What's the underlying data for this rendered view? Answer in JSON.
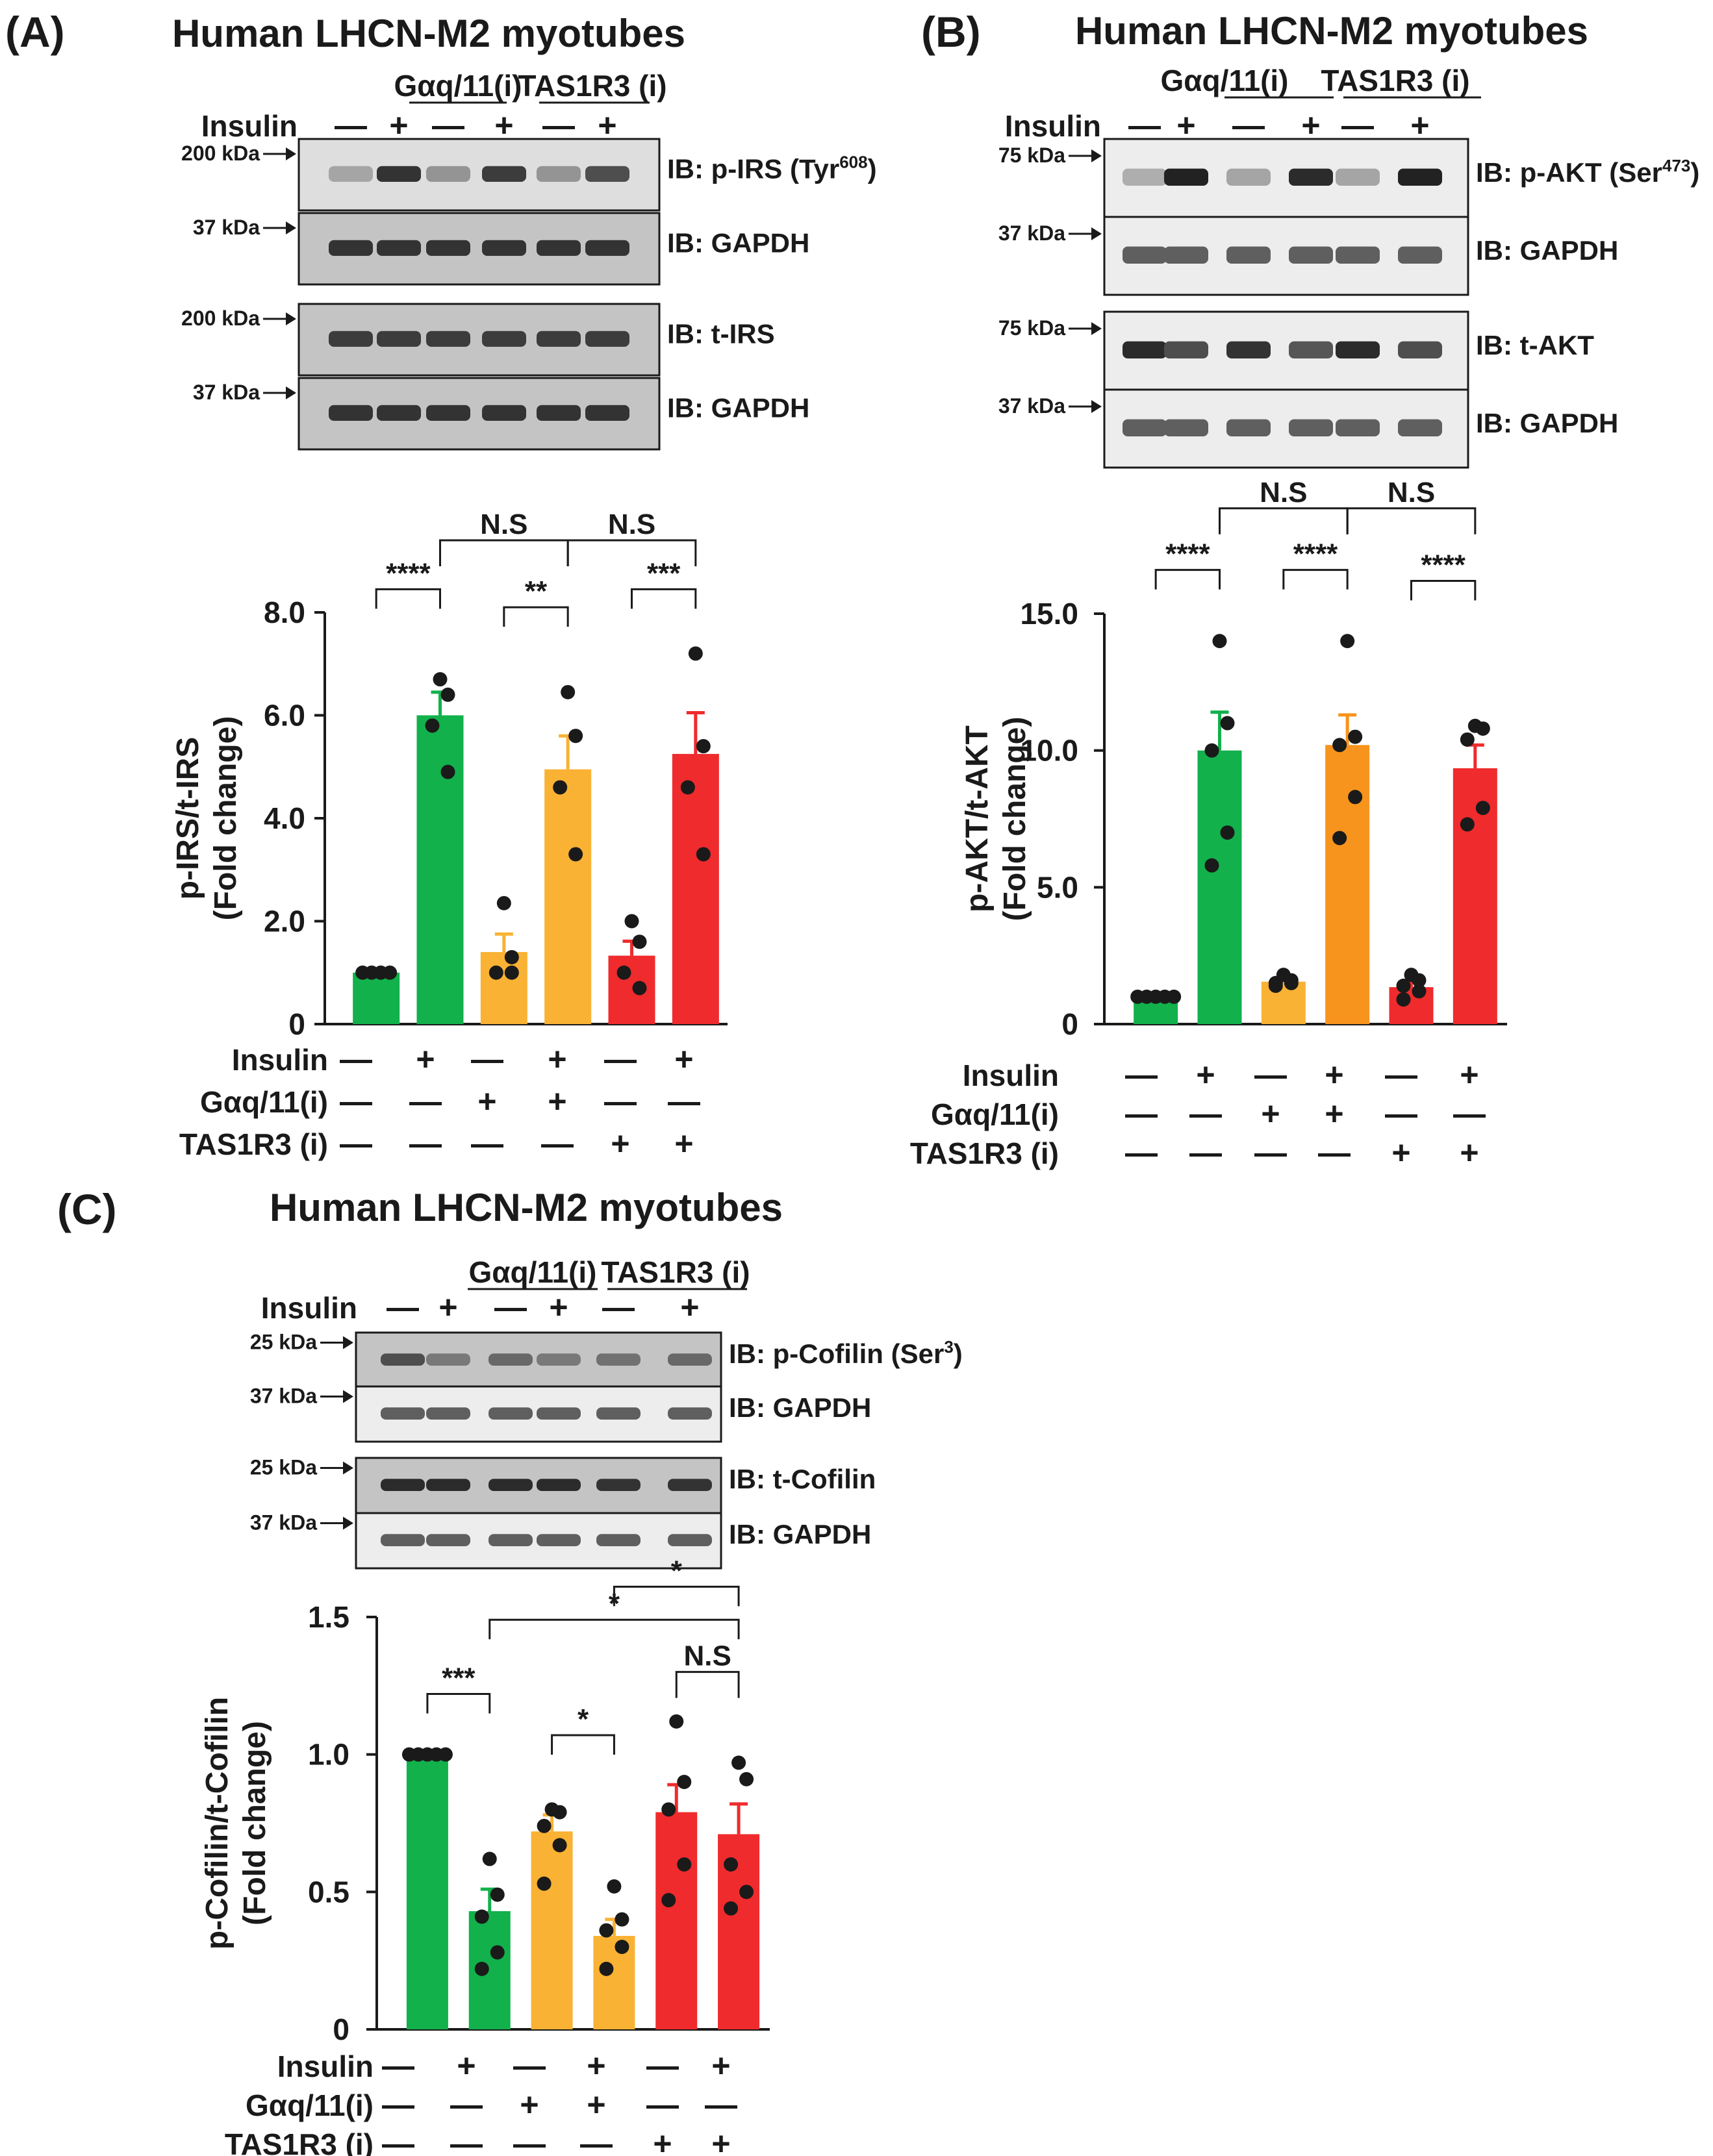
{
  "figure": {
    "panels": [
      {
        "id": "A",
        "label": "(A)",
        "title": "Human LHCN-M2 myotubes",
        "group_headers": [
          "Gαq/11(i)",
          "TAS1R3 (i)"
        ],
        "treatment_row_label": "Insulin",
        "lane_signs": [
          "—",
          "+",
          "—",
          "+",
          "—",
          "+"
        ],
        "blots": [
          {
            "marker": "200 kDa",
            "ib": "IB: p-IRS (Tyr",
            "ib_sup": "608",
            "ib_end": ")",
            "style": "light",
            "intensity": [
              0.2,
              0.85,
              0.3,
              0.8,
              0.3,
              0.7
            ]
          },
          {
            "marker": "37 kDa",
            "ib": "IB: GAPDH",
            "ib_sup": "",
            "ib_end": "",
            "style": "dark",
            "intensity": [
              0.85,
              0.85,
              0.85,
              0.85,
              0.85,
              0.85
            ]
          },
          {
            "marker": "200 kDa",
            "ib": "IB: t-IRS",
            "ib_sup": "",
            "ib_end": "",
            "style": "dark",
            "intensity": [
              0.8,
              0.8,
              0.8,
              0.8,
              0.8,
              0.8
            ]
          },
          {
            "marker": "37 kDa",
            "ib": "IB: GAPDH",
            "ib_sup": "",
            "ib_end": "",
            "style": "dark",
            "intensity": [
              0.85,
              0.85,
              0.85,
              0.85,
              0.85,
              0.85
            ]
          }
        ]
      },
      {
        "id": "B",
        "label": "(B)",
        "title": "Human LHCN-M2 myotubes",
        "group_headers": [
          "Gαq/11(i)",
          "TAS1R3 (i)"
        ],
        "treatment_row_label": "Insulin",
        "lane_signs": [
          "—",
          "+",
          "—",
          "+",
          "—",
          "+"
        ],
        "blots": [
          {
            "marker": "75 kDa",
            "ib": "IB: p-AKT (Ser",
            "ib_sup": "473",
            "ib_end": ")",
            "style": "lite",
            "intensity": [
              0.15,
              0.95,
              0.2,
              0.9,
              0.2,
              0.95
            ]
          },
          {
            "marker": "37 kDa",
            "ib": "IB: GAPDH",
            "ib_sup": "",
            "ib_end": "",
            "style": "lite",
            "intensity": [
              0.6,
              0.6,
              0.6,
              0.6,
              0.6,
              0.6
            ]
          },
          {
            "marker": "75 kDa",
            "ib": "IB: t-AKT",
            "ib_sup": "",
            "ib_end": "",
            "style": "lite",
            "intensity": [
              0.9,
              0.7,
              0.85,
              0.65,
              0.9,
              0.7
            ]
          },
          {
            "marker": "37 kDa",
            "ib": "IB: GAPDH",
            "ib_sup": "",
            "ib_end": "",
            "style": "lite",
            "intensity": [
              0.6,
              0.6,
              0.6,
              0.6,
              0.6,
              0.6
            ]
          }
        ]
      },
      {
        "id": "C",
        "label": "(C)",
        "title": "Human LHCN-M2 myotubes",
        "group_headers": [
          "Gαq/11(i)",
          "TAS1R3 (i)"
        ],
        "treatment_row_label": "Insulin",
        "lane_signs": [
          "—",
          "+",
          "—",
          "+",
          "—",
          "+"
        ],
        "blots": [
          {
            "marker": "25 kDa",
            "ib": "IB: p-Cofilin (Ser",
            "ib_sup": "3",
            "ib_end": ")",
            "style": "dark",
            "intensity": [
              0.7,
              0.45,
              0.55,
              0.45,
              0.5,
              0.55
            ]
          },
          {
            "marker": "37 kDa",
            "ib": "IB: GAPDH",
            "ib_sup": "",
            "ib_end": "",
            "style": "lite",
            "intensity": [
              0.6,
              0.6,
              0.6,
              0.6,
              0.6,
              0.6
            ]
          },
          {
            "marker": "25 kDa",
            "ib": "IB: t-Cofilin",
            "ib_sup": "",
            "ib_end": "",
            "style": "dark",
            "intensity": [
              0.9,
              0.9,
              0.9,
              0.9,
              0.85,
              0.85
            ]
          },
          {
            "marker": "37 kDa",
            "ib": "IB: GAPDH",
            "ib_sup": "",
            "ib_end": "",
            "style": "lite",
            "intensity": [
              0.6,
              0.6,
              0.6,
              0.6,
              0.6,
              0.6
            ]
          }
        ]
      }
    ],
    "treatment_table": {
      "rows": [
        {
          "label": "Insulin",
          "signs": [
            "—",
            "+",
            "—",
            "+",
            "—",
            "+"
          ]
        },
        {
          "label": "Gαq/11(i)",
          "signs": [
            "—",
            "—",
            "+",
            "+",
            "—",
            "—"
          ]
        },
        {
          "label": "TAS1R3 (i)",
          "signs": [
            "—",
            "—",
            "—",
            "—",
            "+",
            "+"
          ]
        }
      ]
    },
    "colors": {
      "green": "#12b14b",
      "orange": "#f9b233",
      "orange_b": "#f7941d",
      "red": "#ef2b2d",
      "black": "#1a1a1a"
    }
  },
  "chart_data": [
    {
      "panel": "A",
      "type": "bar",
      "ylabel": "p-IRS/t-IRS",
      "ylabel2": "(Fold change)",
      "ylim": [
        0,
        8
      ],
      "yticks": [
        0,
        2,
        4,
        6,
        8
      ],
      "ytick_labels": [
        "0",
        "2.0",
        "4.0",
        "6.0",
        "8.0"
      ],
      "categories": [
        "1",
        "2",
        "3",
        "4",
        "5",
        "6"
      ],
      "values": [
        1.0,
        6.0,
        1.4,
        4.95,
        1.33,
        5.25
      ],
      "errors": [
        0.0,
        0.45,
        0.35,
        0.65,
        0.28,
        0.8
      ],
      "bar_colors": [
        "#12b14b",
        "#12b14b",
        "#f9b233",
        "#f9b233",
        "#ef2b2d",
        "#ef2b2d"
      ],
      "points": [
        [
          1.0,
          1.0,
          1.0,
          1.0
        ],
        [
          6.7,
          6.4,
          5.8,
          4.9
        ],
        [
          2.35,
          1.3,
          1.0,
          1.0
        ],
        [
          6.45,
          5.6,
          4.6,
          3.3
        ],
        [
          2.0,
          1.6,
          1.0,
          0.7
        ],
        [
          7.2,
          5.4,
          4.6,
          3.3
        ]
      ],
      "annotations": [
        {
          "text": "****",
          "from": 0,
          "to": 1,
          "level": 8.45
        },
        {
          "text": "**",
          "from": 2,
          "to": 3,
          "level": 8.1
        },
        {
          "text": "***",
          "from": 4,
          "to": 5,
          "level": 8.45
        },
        {
          "text": "N.S",
          "from": 1,
          "to": 3,
          "level": 9.4
        },
        {
          "text": "N.S",
          "from": 3,
          "to": 5,
          "level": 9.4
        }
      ]
    },
    {
      "panel": "B",
      "type": "bar",
      "ylabel": "p-AKT/t-AKT",
      "ylabel2": "(Fold change)",
      "ylim": [
        0,
        15
      ],
      "yticks": [
        0,
        5,
        10,
        15
      ],
      "ytick_labels": [
        "0",
        "5.0",
        "10.0",
        "15.0"
      ],
      "categories": [
        "1",
        "2",
        "3",
        "4",
        "5",
        "6"
      ],
      "values": [
        1.0,
        10.0,
        1.55,
        10.2,
        1.35,
        9.35
      ],
      "errors": [
        0.0,
        1.4,
        0.15,
        1.1,
        0.25,
        0.85
      ],
      "bar_colors": [
        "#12b14b",
        "#12b14b",
        "#f9b233",
        "#f7941d",
        "#ef2b2d",
        "#ef2b2d"
      ],
      "points": [
        [
          1.0,
          1.0,
          1.0,
          1.0,
          1.0
        ],
        [
          14.0,
          11.0,
          10.0,
          7.0,
          5.8
        ],
        [
          1.8,
          1.6,
          1.5,
          1.5,
          1.4
        ],
        [
          14.0,
          10.5,
          10.2,
          8.3,
          6.8
        ],
        [
          1.8,
          1.6,
          1.4,
          1.2,
          0.9
        ],
        [
          10.9,
          10.8,
          10.4,
          7.9,
          7.3
        ]
      ],
      "annotations": [
        {
          "text": "****",
          "from": 0,
          "to": 1,
          "level": 16.6
        },
        {
          "text": "****",
          "from": 2,
          "to": 3,
          "level": 16.6
        },
        {
          "text": "****",
          "from": 4,
          "to": 5,
          "level": 16.2
        },
        {
          "text": "N.S",
          "from": 1,
          "to": 3,
          "level": 18.85
        },
        {
          "text": "N.S",
          "from": 3,
          "to": 5,
          "level": 18.85
        }
      ]
    },
    {
      "panel": "C",
      "type": "bar",
      "ylabel": "p-Cofilin/t-Cofilin",
      "ylabel2": "(Fold change)",
      "ylim": [
        0,
        1.5
      ],
      "yticks": [
        0,
        0.5,
        1.0,
        1.5
      ],
      "ytick_labels": [
        "0",
        "0.5",
        "1.0",
        "1.5"
      ],
      "categories": [
        "1",
        "2",
        "3",
        "4",
        "5",
        "6"
      ],
      "values": [
        1.0,
        0.43,
        0.72,
        0.34,
        0.79,
        0.71
      ],
      "errors": [
        0.0,
        0.08,
        0.06,
        0.06,
        0.1,
        0.11
      ],
      "bar_colors": [
        "#12b14b",
        "#12b14b",
        "#f9b233",
        "#f9b233",
        "#ef2b2d",
        "#ef2b2d"
      ],
      "points": [
        [
          1.0,
          1.0,
          1.0,
          1.0,
          1.0
        ],
        [
          0.62,
          0.49,
          0.41,
          0.28,
          0.22
        ],
        [
          0.8,
          0.79,
          0.74,
          0.67,
          0.53
        ],
        [
          0.52,
          0.4,
          0.36,
          0.3,
          0.22
        ],
        [
          1.12,
          0.9,
          0.8,
          0.6,
          0.47
        ],
        [
          0.97,
          0.91,
          0.6,
          0.5,
          0.44
        ]
      ],
      "annotations": [
        {
          "text": "***",
          "from": 0,
          "to": 1,
          "level": 1.22
        },
        {
          "text": "*",
          "from": 2,
          "to": 3,
          "level": 1.07
        },
        {
          "text": "N.S",
          "from": 4,
          "to": 5,
          "level": 1.3
        },
        {
          "text": "*",
          "from": 1,
          "to": 5,
          "level": 1.49
        },
        {
          "text": "*",
          "from": 3,
          "to": 5,
          "level": 1.61
        }
      ]
    }
  ]
}
